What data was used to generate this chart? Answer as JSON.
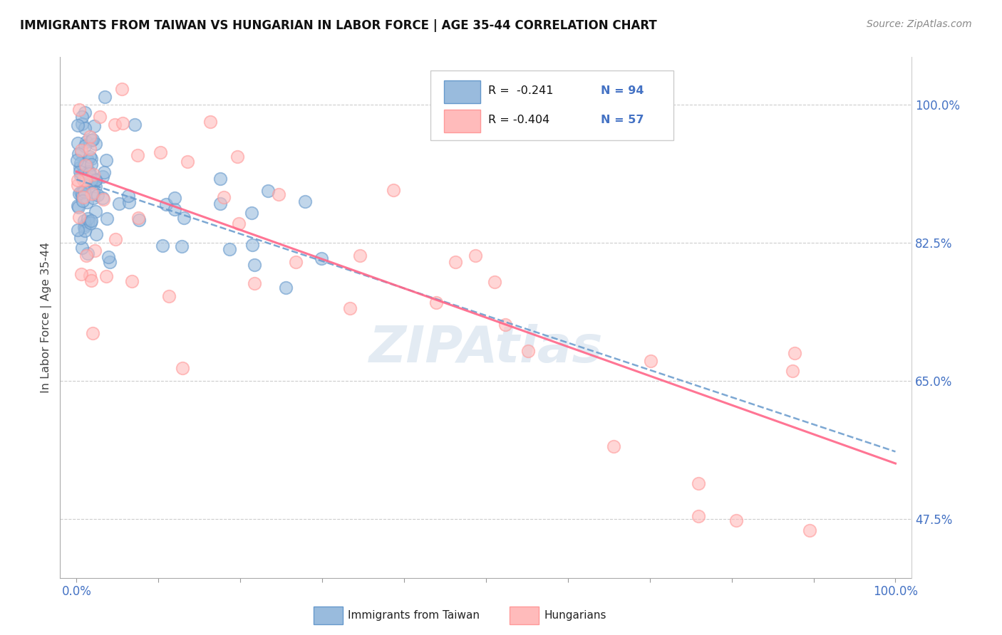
{
  "title": "IMMIGRANTS FROM TAIWAN VS HUNGARIAN IN LABOR FORCE | AGE 35-44 CORRELATION CHART",
  "source": "Source: ZipAtlas.com",
  "ylabel": "In Labor Force | Age 35-44",
  "xlim": [
    -2,
    102
  ],
  "ylim": [
    40,
    106
  ],
  "ytick_positions": [
    47.5,
    65.0,
    82.5,
    100.0
  ],
  "ytick_labels": [
    "47.5%",
    "65.0%",
    "82.5%",
    "100.0%"
  ],
  "xtick_minor_positions": [
    0,
    10,
    20,
    30,
    40,
    50,
    60,
    70,
    80,
    90,
    100
  ],
  "xtick_labels_main": [
    "0.0%",
    "100.0%"
  ],
  "color_taiwan": "#6699CC",
  "color_taiwan_face": "#99BBDD",
  "color_hungarian": "#FF9999",
  "color_hungarian_face": "#FFBBBB",
  "color_trend_taiwan": "#6699CC",
  "color_trend_hungarian": "#FF6688",
  "color_tick_label": "#4472C4",
  "color_grid": "#CCCCCC",
  "watermark_color": "#C8D8E8",
  "legend_label_1": "Immigrants from Taiwan",
  "legend_label_2": "Hungarians",
  "taiwan_n": 94,
  "hungarian_n": 57,
  "taiwan_r": -0.241,
  "hungarian_r": -0.404,
  "trend_x_start": 0,
  "trend_x_end": 100,
  "tw_trend_y_at_0": 90.5,
  "tw_trend_y_at_100": 56.0,
  "hu_trend_y_at_0": 91.5,
  "hu_trend_y_at_100": 54.5
}
